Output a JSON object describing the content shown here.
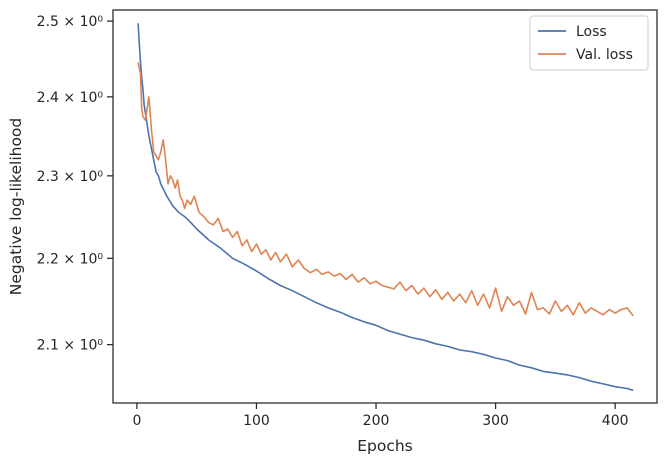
{
  "chart_data": {
    "type": "line",
    "xlabel": "Epochs",
    "ylabel": "Negative log-likelihood",
    "xlim": [
      -20,
      435
    ],
    "ylim": [
      2.035,
      2.515
    ],
    "yscale": "log",
    "xticks": [
      0,
      100,
      200,
      300,
      400
    ],
    "xtick_labels": [
      "0",
      "100",
      "200",
      "300",
      "400"
    ],
    "yticks": [
      2.1,
      2.2,
      2.3,
      2.4,
      2.5
    ],
    "ytick_labels": [
      "2.1 × 10⁰",
      "2.2 × 10⁰",
      "2.3 × 10⁰",
      "2.4 × 10⁰",
      "2.5 × 10⁰"
    ],
    "grid": false,
    "legend": {
      "placement": "top-right"
    },
    "series": [
      {
        "name": "Loss",
        "color": "#4c72b0",
        "x": [
          1,
          2,
          3,
          4,
          5,
          6,
          7,
          8,
          10,
          12,
          14,
          16,
          18,
          20,
          25,
          30,
          35,
          40,
          45,
          50,
          60,
          70,
          80,
          90,
          100,
          110,
          120,
          130,
          140,
          150,
          160,
          170,
          180,
          190,
          200,
          210,
          220,
          230,
          240,
          250,
          260,
          270,
          280,
          290,
          300,
          310,
          320,
          330,
          340,
          350,
          360,
          370,
          380,
          390,
          400,
          410,
          415
        ],
        "values": [
          2.497,
          2.47,
          2.445,
          2.425,
          2.41,
          2.39,
          2.38,
          2.37,
          2.35,
          2.335,
          2.32,
          2.305,
          2.3,
          2.29,
          2.275,
          2.263,
          2.255,
          2.25,
          2.243,
          2.235,
          2.222,
          2.212,
          2.2,
          2.193,
          2.185,
          2.176,
          2.168,
          2.162,
          2.155,
          2.148,
          2.142,
          2.137,
          2.131,
          2.126,
          2.122,
          2.116,
          2.112,
          2.108,
          2.105,
          2.101,
          2.098,
          2.094,
          2.092,
          2.089,
          2.085,
          2.082,
          2.077,
          2.074,
          2.07,
          2.068,
          2.066,
          2.063,
          2.059,
          2.056,
          2.053,
          2.051,
          2.049
        ]
      },
      {
        "name": "Val. loss",
        "color": "#dd8452",
        "x": [
          1,
          3,
          4,
          5,
          7,
          8,
          10,
          12,
          14,
          16,
          18,
          20,
          22,
          24,
          26,
          28,
          30,
          32,
          34,
          36,
          38,
          40,
          42,
          45,
          48,
          52,
          56,
          60,
          64,
          68,
          72,
          76,
          80,
          84,
          88,
          92,
          96,
          100,
          104,
          108,
          112,
          116,
          120,
          125,
          130,
          135,
          140,
          145,
          150,
          155,
          160,
          165,
          170,
          175,
          180,
          185,
          190,
          195,
          200,
          205,
          210,
          215,
          220,
          225,
          230,
          235,
          240,
          245,
          250,
          255,
          260,
          265,
          270,
          275,
          280,
          285,
          290,
          295,
          300,
          305,
          310,
          315,
          320,
          325,
          330,
          335,
          340,
          345,
          350,
          355,
          360,
          365,
          370,
          375,
          380,
          385,
          390,
          395,
          400,
          405,
          410,
          415
        ],
        "values": [
          2.445,
          2.43,
          2.385,
          2.375,
          2.37,
          2.38,
          2.4,
          2.36,
          2.33,
          2.325,
          2.32,
          2.33,
          2.345,
          2.32,
          2.29,
          2.3,
          2.295,
          2.285,
          2.295,
          2.275,
          2.27,
          2.26,
          2.27,
          2.265,
          2.275,
          2.255,
          2.25,
          2.243,
          2.24,
          2.248,
          2.232,
          2.235,
          2.225,
          2.232,
          2.215,
          2.222,
          2.208,
          2.217,
          2.205,
          2.21,
          2.198,
          2.207,
          2.196,
          2.205,
          2.19,
          2.198,
          2.188,
          2.183,
          2.187,
          2.181,
          2.184,
          2.179,
          2.182,
          2.175,
          2.181,
          2.172,
          2.177,
          2.17,
          2.173,
          2.168,
          2.166,
          2.164,
          2.172,
          2.162,
          2.168,
          2.158,
          2.165,
          2.155,
          2.163,
          2.152,
          2.16,
          2.15,
          2.158,
          2.148,
          2.162,
          2.145,
          2.158,
          2.142,
          2.165,
          2.138,
          2.155,
          2.145,
          2.15,
          2.135,
          2.16,
          2.14,
          2.142,
          2.135,
          2.15,
          2.138,
          2.145,
          2.134,
          2.148,
          2.136,
          2.142,
          2.138,
          2.134,
          2.14,
          2.136,
          2.14,
          2.142,
          2.133
        ]
      }
    ]
  }
}
